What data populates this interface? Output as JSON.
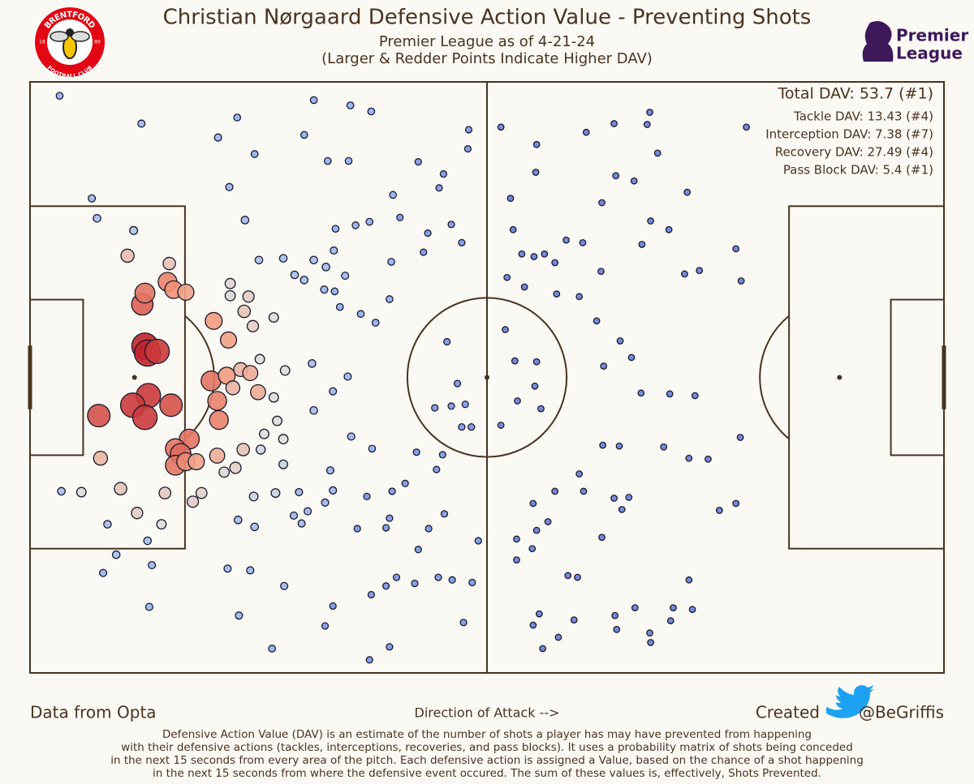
{
  "chart_data": {
    "type": "scatter",
    "title": "Christian Nørgaard Defensive Action Value - Preventing Shots",
    "subtitle": [
      "Premier League as of 4-21-24",
      "(Larger & Redder Points Indicate Higher DAV)"
    ],
    "stats": [
      "Total DAV: 53.7 (#1)",
      "Tackle DAV: 13.43 (#4)",
      "Interception DAV: 7.38 (#7)",
      "Recovery DAV: 27.49 (#4)",
      "Pass Block DAV: 5.4 (#1)"
    ],
    "source": "Data from Opta",
    "direction": "Direction of Attack -->",
    "credit": [
      "Created",
      "@BeGriffis"
    ],
    "description": [
      "Defensive Action Value (DAV) is an estimate of the number of shots a player has may have prevented from happening",
      "with their defensive actions (tackles, interceptions, recoveries, and pass blocks). It uses a probability matrix of shots being conceded",
      "in the next 15 seconds from every area of the pitch. Each defensive action is assigned a Value, based on the chance of a shot happening",
      "in the next 15 seconds from where the defensive event occured. The sum of these values is, effectively, Shots Prevented."
    ],
    "club_logo": {
      "top": "BRENTFORD",
      "bottom": "FOOTBALL CLUB",
      "left": "18",
      "right": "89"
    },
    "league_logo": [
      "Premier",
      "League"
    ],
    "xlim": [
      0,
      105
    ],
    "ylim": [
      0,
      68
    ],
    "color_stops": [
      {
        "value": 0,
        "color": "#4e64cc"
      },
      {
        "value": 0.03,
        "color": "#8fb0f6"
      },
      {
        "value": 0.1,
        "color": "#dcdddd"
      },
      {
        "value": 0.3,
        "color": "#f39b7f"
      },
      {
        "value": 0.55,
        "color": "#c0222b"
      }
    ],
    "x": [
      13.2,
      13.5,
      14.6,
      13.6,
      11.8,
      13.2,
      16.2,
      7.9,
      12.9,
      13.2,
      15.8,
      16.5,
      17.9,
      18.3,
      16.7,
      17.3,
      16.7,
      17.9,
      19.1,
      20.8,
      21.5,
      21.7,
      22.6,
      21.1,
      22.8,
      23.3,
      24.2,
      25.3,
      26.2,
      24.6,
      25.6,
      25.1,
      23.0,
      21.5,
      24.5,
      23.6,
      22.3,
      8.1,
      11.2,
      16.0,
      10.4,
      15.5,
      12.3,
      18.7,
      19.7,
      23.0,
      26.4,
      28.0,
      28.0,
      29.3,
      28.4,
      26.9,
      29.1,
      26.5,
      5.9,
      15.1,
      28.2,
      25.7,
      29.1,
      11.9,
      7.7,
      3.6,
      8.9,
      9.9,
      13.5,
      14.0,
      8.4,
      13.7,
      7.1,
      24.7,
      22.9,
      26.3,
      29.1,
      30.4,
      31.5,
      32.6,
      34.0,
      34.9,
      36.2,
      33.8,
      32.4,
      32.6,
      34.8,
      36.5,
      36.9,
      39.3,
      34.5,
      34.8,
      33.9,
      30.9,
      31.9,
      31.2,
      30.3,
      23.9,
      25.8,
      22.7,
      25.3,
      29.2,
      24.0,
      27.8,
      21.6,
      23.8,
      25.8,
      12.8,
      3.4,
      31.5,
      32.6,
      36.8,
      39.2,
      34.2,
      36.6,
      41.7,
      39.0,
      37.4,
      41.5,
      39.7,
      38.0,
      41.3,
      35.6,
      35.1,
      35.0,
      43.1,
      41.6,
      41.3,
      40.9,
      38.7,
      37.6,
      44.4,
      46.7,
      47.4,
      44.6,
      44.2,
      42.1,
      40.9,
      39.2,
      34.8,
      33.9,
      39.0,
      41.3,
      46.9,
      48.5,
      50.8,
      47.6,
      51.5,
      49.8,
      45.8,
      45.2,
      45.7,
      49.6,
      48.4,
      47.5,
      47.0,
      50.3,
      50.4,
      44.6,
      42.5,
      47.9,
      49.1,
      50.0,
      48.4,
      49.6,
      50.7,
      46.5,
      54.1,
      58.2,
      58.1,
      55.2,
      55.5,
      56.5,
      57.9,
      59.1,
      60.3,
      54.8,
      56.8,
      60.5,
      63.1,
      54.6,
      55.7,
      58.2,
      58.0,
      56.0,
      54.1,
      58.7,
      63.9,
      67.1,
      70.9,
      71.2,
      72.1,
      67.3,
      69.4,
      75.5,
      65.7,
      61.6,
      63.5,
      70.3,
      71.3,
      73.4,
      76.9,
      75.2,
      65.6,
      65.1,
      67.8,
      69.1,
      65.9,
      70.2,
      73.5,
      76.4,
      81.6,
      82.3,
      81.1,
      81.7,
      65.8,
      67.7,
      72.8,
      75.7,
      77.9,
      63.1,
      60.3,
      63.6,
      57.8,
      59.5,
      67.1,
      68.8,
      68.0,
      55.9,
      58.2,
      57.7,
      55.9,
      65.7,
      61.8,
      62.9,
      75.7,
      79.2,
      81.1,
      57.8,
      58.9,
      58.5,
      62.5,
      67.4,
      67.2,
      69.5,
      71.2,
      73.6,
      73.9,
      76.1,
      71.3,
      60.7
    ],
    "y": [
      37.6,
      36.8,
      37.0,
      31.9,
      30.8,
      29.4,
      30.8,
      29.6,
      42.4,
      43.7,
      45.0,
      44.1,
      43.8,
      26.9,
      25.8,
      25.2,
      23.9,
      24.3,
      24.3,
      33.6,
      31.3,
      29.1,
      34.2,
      40.5,
      38.3,
      32.8,
      34.9,
      34.5,
      32.3,
      41.6,
      39.9,
      43.3,
      44.8,
      25.0,
      25.7,
      23.6,
      23.1,
      24.7,
      48.0,
      47.1,
      21.2,
      20.7,
      18.4,
      19.7,
      20.7,
      43.4,
      36.1,
      40.9,
      31.7,
      34.8,
      29.0,
      27.5,
      26.9,
      25.7,
      20.8,
      17.1,
      20.7,
      20.3,
      24.0,
      50.9,
      52.3,
      20.9,
      17.1,
      13.6,
      15.2,
      12.4,
      11.5,
      7.6,
      54.6,
      52.1,
      55.9,
      47.5,
      47.7,
      45.8,
      45.2,
      47.5,
      46.7,
      48.6,
      45.7,
      44.1,
      35.6,
      30.2,
      32.4,
      34.1,
      27.2,
      25.8,
      23.3,
      21.0,
      19.6,
      20.8,
      18.6,
      17.2,
      18.1,
      17.6,
      16.8,
      12.0,
      11.8,
      10.0,
      6.6,
      2.8,
      61.6,
      63.9,
      59.7,
      63.2,
      66.4,
      61.9,
      65.9,
      65.3,
      64.6,
      58.9,
      58.9,
      55.0,
      51.9,
      51.5,
      47.3,
      40.3,
      41.3,
      43.0,
      42.1,
      51.1,
      43.9,
      21.8,
      20.9,
      17.8,
      16.7,
      20.3,
      16.6,
      25.4,
      23.4,
      25.1,
      14.2,
      10.3,
      11.0,
      10.0,
      9.0,
      7.7,
      5.4,
      1.5,
      3.0,
      11.0,
      10.7,
      10.4,
      18.3,
      15.2,
      5.8,
      16.6,
      48.4,
      50.6,
      49.5,
      51.6,
      57.4,
      55.8,
      60.3,
      62.5,
      58.8,
      52.4,
      38.1,
      33.3,
      30.9,
      30.7,
      28.3,
      28.3,
      30.5,
      62.8,
      60.8,
      57.6,
      54.6,
      51.0,
      48.2,
      47.9,
      48.2,
      47.2,
      45.5,
      44.4,
      43.6,
      43.3,
      39.5,
      35.9,
      35.8,
      33.0,
      31.3,
      28.5,
      30.4,
      62.2,
      63.2,
      63.1,
      64.5,
      59.8,
      57.2,
      56.6,
      55.3,
      54.1,
      49.8,
      49.5,
      49.3,
      52.0,
      51.0,
      46.3,
      45.9,
      46.2,
      40.5,
      38.2,
      36.3,
      35.3,
      32.2,
      32.1,
      31.9,
      27.1,
      62.8,
      48.8,
      45.1,
      26.2,
      26.1,
      26.0,
      24.7,
      24.6,
      22.9,
      20.9,
      20.9,
      19.5,
      17.4,
      20.1,
      20.2,
      18.8,
      15.4,
      16.4,
      14.3,
      13.0,
      15.6,
      11.2,
      11.0,
      10.7,
      18.7,
      19.5,
      5.5,
      2.8,
      6.8,
      6.1,
      5.0,
      6.6,
      7.5,
      4.6,
      6.0,
      7.5,
      7.3,
      3.5,
      4.1
    ],
    "values": [
      0.55,
      0.55,
      0.5,
      0.5,
      0.5,
      0.5,
      0.45,
      0.45,
      0.42,
      0.38,
      0.35,
      0.32,
      0.28,
      0.38,
      0.38,
      0.4,
      0.38,
      0.33,
      0.28,
      0.38,
      0.35,
      0.35,
      0.3,
      0.3,
      0.28,
      0.22,
      0.22,
      0.25,
      0.25,
      0.18,
      0.15,
      0.15,
      0.12,
      0.25,
      0.18,
      0.15,
      0.12,
      0.22,
      0.2,
      0.18,
      0.18,
      0.16,
      0.15,
      0.15,
      0.14,
      0.12,
      0.1,
      0.1,
      0.1,
      0.1,
      0.1,
      0.1,
      0.1,
      0.09,
      0.1,
      0.1,
      0.08,
      0.08,
      0.08,
      0.06,
      0.05,
      0.05,
      0.05,
      0.05,
      0.05,
      0.04,
      0.04,
      0.04,
      0.04,
      0.05,
      0.04,
      0.05,
      0.05,
      0.05,
      0.05,
      0.05,
      0.05,
      0.04,
      0.04,
      0.04,
      0.05,
      0.05,
      0.04,
      0.04,
      0.04,
      0.03,
      0.04,
      0.04,
      0.04,
      0.04,
      0.04,
      0.04,
      0.04,
      0.05,
      0.05,
      0.04,
      0.04,
      0.04,
      0.04,
      0.03,
      0.04,
      0.03,
      0.03,
      0.04,
      0.03,
      0.03,
      0.03,
      0.03,
      0.03,
      0.03,
      0.03,
      0.03,
      0.03,
      0.03,
      0.03,
      0.03,
      0.03,
      0.03,
      0.03,
      0.03,
      0.03,
      0.02,
      0.02,
      0.02,
      0.02,
      0.02,
      0.02,
      0.02,
      0.02,
      0.02,
      0.02,
      0.02,
      0.02,
      0.02,
      0.02,
      0.02,
      0.02,
      0.02,
      0.02,
      0.02,
      0.02,
      0.02,
      0.02,
      0.02,
      0.02,
      0.02,
      0.02,
      0.02,
      0.02,
      0.02,
      0.02,
      0.02,
      0.02,
      0.02,
      0.02,
      0.02,
      0.02,
      0.02,
      0.02,
      0.02,
      0.02,
      0.02,
      0.02,
      0.01,
      0.01,
      0.01,
      0.01,
      0.01,
      0.01,
      0.01,
      0.01,
      0.01,
      0.01,
      0.01,
      0.01,
      0.01,
      0.01,
      0.01,
      0.01,
      0.01,
      0.01,
      0.01,
      0.01,
      0.01,
      0.01,
      0.01,
      0.01,
      0.01,
      0.01,
      0.01,
      0.01,
      0.01,
      0.01,
      0.01,
      0.01,
      0.01,
      0.01,
      0.01,
      0.01,
      0.01,
      0.01,
      0.01,
      0.01,
      0.01,
      0.01,
      0.01,
      0.01,
      0.01,
      0.01,
      0.01,
      0.01,
      0.01,
      0.01,
      0.01,
      0.01,
      0.01,
      0.01,
      0.01,
      0.01,
      0.01,
      0.01,
      0.01,
      0.01,
      0.01,
      0.01,
      0.01,
      0.01,
      0.01,
      0.01,
      0.01,
      0.01,
      0.01,
      0.01,
      0.01,
      0.01,
      0.01,
      0.01,
      0.01,
      0.01,
      0.01,
      0.01,
      0.01,
      0.01,
      0.01,
      0.01,
      0.01,
      0.01
    ]
  }
}
